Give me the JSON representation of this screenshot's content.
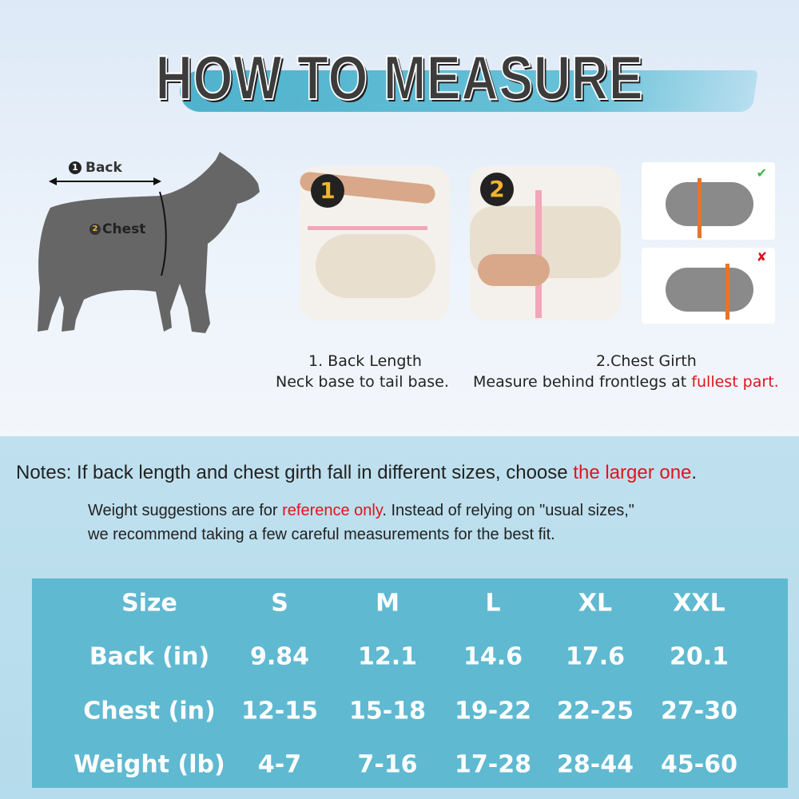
{
  "title": "HOW TO MEASURE",
  "diagram": {
    "back_label": "Back",
    "chest_label": "Chest",
    "back_num": "1",
    "chest_num": "2"
  },
  "photos": [
    {
      "number": "1"
    },
    {
      "number": "2"
    }
  ],
  "captions": {
    "back_title": "1. Back Length",
    "back_desc": "Neck base to tail base.",
    "chest_title": "2.Chest Girth",
    "chest_desc": "Measure behind frontlegs at ",
    "chest_highlight": "fullest part."
  },
  "notes": {
    "label": "Notes:",
    "line1": "If back length and chest girth fall in different sizes, choose ",
    "line1_highlight": "the larger one",
    ".": ".",
    "line2a": "Weight suggestions are for ",
    "line2_highlight": "reference only",
    "line2b": ". Instead of relying on \"usual sizes,\"",
    "line3": "we recommend taking a few careful measurements for the best fit."
  },
  "table": {
    "headers": [
      "Size",
      "S",
      "M",
      "L",
      "XL",
      "XXL"
    ],
    "rows": [
      [
        "Back (in)",
        "9.84",
        "12.1",
        "14.6",
        "17.6",
        "20.1"
      ],
      [
        "Chest (in)",
        "12-15",
        "15-18",
        "19-22",
        "22-25",
        "27-30"
      ],
      [
        "Weight (lb)",
        "4-7",
        "7-16",
        "17-28",
        "28-44",
        "45-60"
      ]
    ]
  },
  "colors": {
    "accent_red": "#e0141e",
    "table_bg": "#5fb9d1",
    "brush": "#4fb2cc"
  }
}
